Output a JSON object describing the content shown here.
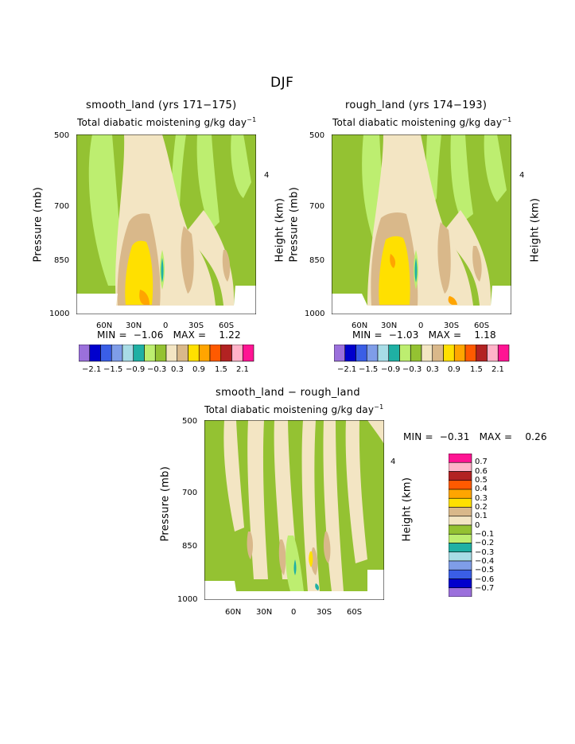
{
  "figure": {
    "title": "DJF",
    "colors": {
      "-0.7": "#9b70dc",
      "-0.6": "#0000cd",
      "-0.5": "#3a5ee6",
      "-0.4": "#7f9de8",
      "-0.3": "#a8dce6",
      "-0.2": "#1fb0a4",
      "-0.1": "#bdee70",
      "0": "#94c232",
      "0.1": "#f3e5c3",
      "0.2": "#d9b88a",
      "0.3": "#ffe000",
      "0.4": "#ffa500",
      "0.5": "#ff5a00",
      "0.6": "#b22222",
      "0.7": "#ffb3c8",
      "0.8": "#ff1493"
    }
  },
  "chart_data": [
    {
      "type": "heatmap",
      "title": "smooth_land (yrs 171−175)",
      "subtitle": "Total diabatic moistening",
      "units_base": "g/kg day",
      "units_exp": "−1",
      "ylabel": "Pressure (mb)",
      "y2label": "Height (km)",
      "y_ticks": [
        "500",
        "700",
        "850",
        "1000"
      ],
      "y2_ticks": [
        "4"
      ],
      "x_ticks": [
        "60N",
        "30N",
        "0",
        "30S",
        "60S"
      ],
      "min_label": "MIN =",
      "min": "−1.06",
      "max_label": "MAX =",
      "max": "1.22",
      "colorbar_labels": [
        "−2.1",
        "−1.5",
        "−0.9",
        "−0.3",
        "0.3",
        "0.9",
        "1.5",
        "2.1"
      ],
      "colorbar_colors": [
        "#9b70dc",
        "#0000cd",
        "#3a5ee6",
        "#7f9de8",
        "#a8dce6",
        "#1fb0a4",
        "#bdee70",
        "#94c232",
        "#f3e5c3",
        "#d9b88a",
        "#ffe000",
        "#ffa500",
        "#ff5a00",
        "#b22222",
        "#ffb3c8",
        "#ff1493"
      ]
    },
    {
      "type": "heatmap",
      "title": "rough_land (yrs 174−193)",
      "subtitle": "Total diabatic moistening",
      "units_base": "g/kg day",
      "units_exp": "−1",
      "ylabel": "Pressure (mb)",
      "y2label": "Height (km)",
      "y_ticks": [
        "500",
        "700",
        "850",
        "1000"
      ],
      "y2_ticks": [
        "4"
      ],
      "x_ticks": [
        "60N",
        "30N",
        "0",
        "30S",
        "60S"
      ],
      "min_label": "MIN =",
      "min": "−1.03",
      "max_label": "MAX =",
      "max": "1.18",
      "colorbar_labels": [
        "−2.1",
        "−1.5",
        "−0.9",
        "−0.3",
        "0.3",
        "0.9",
        "1.5",
        "2.1"
      ],
      "colorbar_colors": [
        "#9b70dc",
        "#0000cd",
        "#3a5ee6",
        "#7f9de8",
        "#a8dce6",
        "#1fb0a4",
        "#bdee70",
        "#94c232",
        "#f3e5c3",
        "#d9b88a",
        "#ffe000",
        "#ffa500",
        "#ff5a00",
        "#b22222",
        "#ffb3c8",
        "#ff1493"
      ]
    },
    {
      "type": "heatmap",
      "title": "smooth_land − rough_land",
      "subtitle": "Total diabatic moistening",
      "units_base": "g/kg day",
      "units_exp": "−1",
      "ylabel": "Pressure (mb)",
      "y2label": "Height (km)",
      "y_ticks": [
        "500",
        "700",
        "850",
        "1000"
      ],
      "y2_ticks": [
        "4"
      ],
      "x_ticks": [
        "60N",
        "30N",
        "0",
        "30S",
        "60S"
      ],
      "min_label": "MIN =",
      "min": "−0.31",
      "max_label": "MAX =",
      "max": "0.26",
      "colorbar_labels": [
        "0.7",
        "0.6",
        "0.5",
        "0.4",
        "0.3",
        "0.2",
        "0.1",
        "0",
        "−0.1",
        "−0.2",
        "−0.3",
        "−0.4",
        "−0.5",
        "−0.6",
        "−0.7"
      ],
      "colorbar_colors": [
        "#ff1493",
        "#ffb3c8",
        "#b22222",
        "#ff5a00",
        "#ffa500",
        "#ffe000",
        "#d9b88a",
        "#f3e5c3",
        "#94c232",
        "#bdee70",
        "#1fb0a4",
        "#a8dce6",
        "#7f9de8",
        "#3a5ee6",
        "#0000cd",
        "#9b70dc"
      ]
    }
  ]
}
